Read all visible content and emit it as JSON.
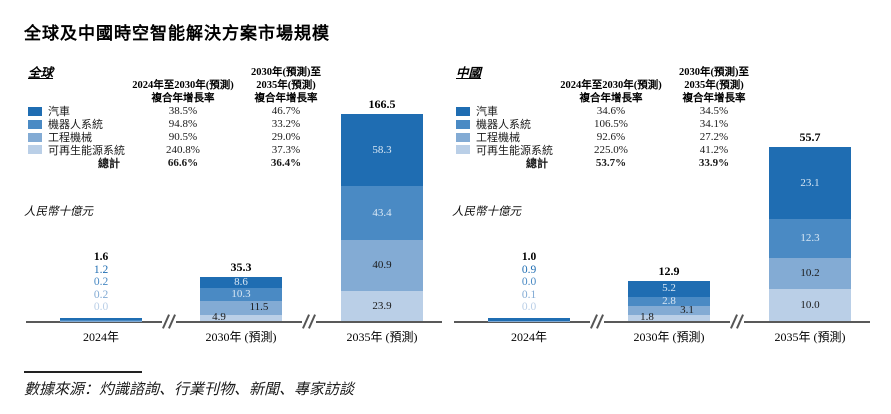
{
  "title": "全球及中國時空智能解決方案市場規模",
  "source": "數據來源：灼識諮詢、行業刊物、新聞、專家訪談",
  "colors": {
    "automotive": "#1F6DB2",
    "robot_systems": "#4A8AC4",
    "engineering_machinery": "#83ABD4",
    "renewable_energy": "#BACFE7",
    "axis": "#595959",
    "label_light": "#D8E7F4",
    "label_dark": "#1a1a1a"
  },
  "chart_data": [
    {
      "type": "stacked-bar",
      "region": "全球",
      "unit_label": "人民幣十億元",
      "categories": [
        "2024年",
        "2030年 (預測)",
        "2035年 (預測)"
      ],
      "cagr_headers": {
        "col1": [
          "2024年至2030年(預測)",
          "複合年增長率"
        ],
        "col2": [
          "2030年(預測)至",
          "2035年(預測)",
          "複合年增長率"
        ]
      },
      "series": [
        {
          "name": "汽車",
          "color": "#1F6DB2",
          "values": [
            1.2,
            8.6,
            58.3
          ],
          "cagr": [
            "38.5%",
            "46.7%"
          ]
        },
        {
          "name": "機器人系統",
          "color": "#4A8AC4",
          "values": [
            0.2,
            10.3,
            43.4
          ],
          "cagr": [
            "94.8%",
            "33.2%"
          ]
        },
        {
          "name": "工程機械",
          "color": "#83ABD4",
          "values": [
            0.2,
            11.5,
            40.9
          ],
          "cagr": [
            "90.5%",
            "29.0%"
          ]
        },
        {
          "name": "可再生能源系統",
          "color": "#BACFE7",
          "values": [
            0.0,
            4.9,
            23.9
          ],
          "cagr": [
            "240.8%",
            "37.3%"
          ]
        }
      ],
      "totals": [
        1.6,
        35.3,
        166.5
      ],
      "total_row": {
        "label": "總計",
        "cagr": [
          "66.6%",
          "36.4%"
        ]
      },
      "ylim": [
        0,
        170
      ],
      "grid": false,
      "legend_position": "top-left"
    },
    {
      "type": "stacked-bar",
      "region": "中國",
      "unit_label": "人民幣十億元",
      "categories": [
        "2024年",
        "2030年 (預測)",
        "2035年 (預測)"
      ],
      "cagr_headers": {
        "col1": [
          "2024年至2030年(預測)",
          "複合年增長率"
        ],
        "col2": [
          "2030年(預測)至",
          "2035年(預測)",
          "複合年增長率"
        ]
      },
      "series": [
        {
          "name": "汽車",
          "color": "#1F6DB2",
          "values": [
            0.9,
            5.2,
            23.1
          ],
          "cagr": [
            "34.6%",
            "34.5%"
          ]
        },
        {
          "name": "機器人系統",
          "color": "#4A8AC4",
          "values": [
            0.0,
            2.8,
            12.3
          ],
          "cagr": [
            "106.5%",
            "34.1%"
          ]
        },
        {
          "name": "工程機械",
          "color": "#83ABD4",
          "values": [
            0.1,
            3.1,
            10.2
          ],
          "cagr": [
            "92.6%",
            "27.2%"
          ]
        },
        {
          "name": "可再生能源系統",
          "color": "#BACFE7",
          "values": [
            0.0,
            1.8,
            10.0
          ],
          "cagr": [
            "225.0%",
            "41.2%"
          ]
        }
      ],
      "totals": [
        1.0,
        12.9,
        55.7
      ],
      "total_row": {
        "label": "總計",
        "cagr": [
          "53.7%",
          "33.9%"
        ]
      },
      "ylim": [
        0,
        60
      ],
      "grid": false,
      "legend_position": "top-left"
    }
  ]
}
